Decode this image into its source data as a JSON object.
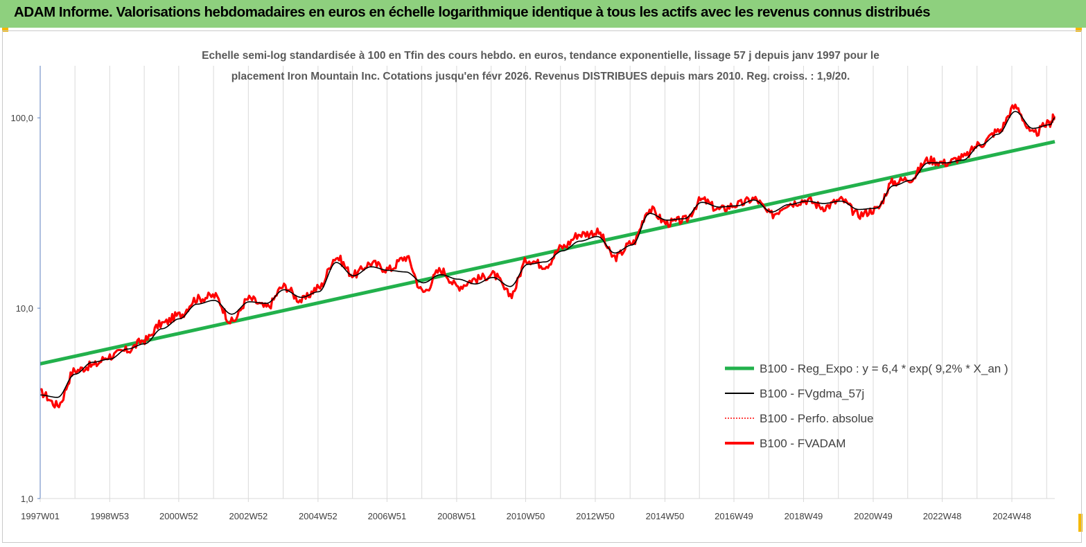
{
  "banner": {
    "title": "ADAM Informe. Valorisations hebdomadaires en euros en échelle logarithmique identique à tous les actifs avec les revenus connus distribués"
  },
  "colors": {
    "banner": "#8ed07e",
    "regression": "#22b14c",
    "fvgdma": "#000000",
    "perfo": "#ff0000",
    "fvadam": "#ff0000",
    "accent": "#f5b800"
  },
  "chart_data": {
    "type": "line",
    "title_lines": [
      "Echelle semi-log standardisée à 100 en Tfin des cours hebdo. en euros, tendance exponentielle, lissage 57 j depuis janv 1997 pour le",
      "placement Iron Mountain Inc. Cotations jusqu'en févr 2026. Revenus DISTRIBUES depuis mars 2010. Reg. croiss. : 1,9/20."
    ],
    "y_scale": "log",
    "ylim": [
      1,
      180
    ],
    "xlim": [
      "1997W01",
      "2026W08"
    ],
    "y_ticks": [
      {
        "value": 1,
        "label": "1,0"
      },
      {
        "value": 10,
        "label": "10,0"
      },
      {
        "value": 100,
        "label": "100,0"
      }
    ],
    "x_ticks": [
      "1997W01",
      "1998W53",
      "2000W52",
      "2002W52",
      "2004W52",
      "2006W51",
      "2008W51",
      "2010W50",
      "2012W50",
      "2014W50",
      "2016W49",
      "2018W49",
      "2020W49",
      "2022W48",
      "2024W48"
    ],
    "grid": "vertical",
    "legend_position": "right",
    "legend": [
      {
        "key": "regression",
        "label": "B100 - Reg_Expo : y = 6,4 *  exp( 9,2% *  X_an )"
      },
      {
        "key": "fvgdma",
        "label": "B100 - FVgdma_57j"
      },
      {
        "key": "perfo",
        "label": "B100 - Perfo. absolue"
      },
      {
        "key": "fvadam",
        "label": "B100 - FVADAM"
      }
    ],
    "series": [
      {
        "key": "regression",
        "name": "B100 - Reg_Expo : y = 6,4 *  exp( 9,2% *  X_an )",
        "x": [
          "1997W01",
          "2026W08"
        ],
        "y": [
          5.1,
          75
        ]
      },
      {
        "key": "fvgdma",
        "name": "B100 - FVgdma_57j",
        "x": [
          "1997W01",
          "1997W27",
          "1998W01",
          "1998W27",
          "1999W01",
          "1999W27",
          "2000W01",
          "2000W27",
          "2001W01",
          "2001W27",
          "2002W01",
          "2002W27",
          "2003W01",
          "2003W27",
          "2004W01",
          "2004W27",
          "2005W01",
          "2005W27",
          "2006W01",
          "2006W27",
          "2007W01",
          "2007W27",
          "2008W01",
          "2008W27",
          "2009W01",
          "2009W27",
          "2010W01",
          "2010W27",
          "2011W01",
          "2011W27",
          "2012W01",
          "2012W27",
          "2013W01",
          "2013W27",
          "2014W01",
          "2014W27",
          "2015W01",
          "2015W27",
          "2016W01",
          "2016W27",
          "2017W01",
          "2017W27",
          "2018W01",
          "2018W27",
          "2019W01",
          "2019W27",
          "2020W01",
          "2020W27",
          "2021W01",
          "2021W27",
          "2022W01",
          "2022W27",
          "2023W01",
          "2023W27",
          "2024W01",
          "2024W27",
          "2025W01",
          "2025W27",
          "2026W01",
          "2026W08"
        ],
        "y": [
          3.5,
          3.4,
          4.5,
          5.2,
          5.4,
          6.1,
          6.5,
          7.8,
          8.8,
          10.5,
          11.0,
          9.3,
          10.8,
          10.6,
          12.5,
          11.4,
          12.2,
          17.4,
          14.8,
          16.5,
          15.8,
          15.5,
          13.6,
          15.0,
          14.2,
          13.4,
          14.5,
          13.0,
          17.0,
          17.5,
          20.0,
          22.5,
          23.8,
          19.5,
          21.5,
          31.5,
          29.0,
          29.5,
          36.0,
          34.0,
          34.5,
          37.0,
          32.0,
          35.0,
          36.5,
          35.5,
          36.5,
          33.0,
          33.5,
          44.0,
          47.0,
          58.0,
          58.0,
          60.0,
          72.0,
          82.0,
          108.0,
          88.0,
          92.0,
          100.0
        ]
      },
      {
        "key": "fvadam",
        "name": "B100 - FVADAM",
        "x": [
          "1997W01",
          "1997W27",
          "1998W01",
          "1998W27",
          "1999W01",
          "1999W27",
          "2000W01",
          "2000W27",
          "2001W01",
          "2001W27",
          "2002W01",
          "2002W27",
          "2003W01",
          "2003W27",
          "2004W01",
          "2004W27",
          "2005W01",
          "2005W27",
          "2006W01",
          "2006W27",
          "2007W01",
          "2007W27",
          "2008W01",
          "2008W27",
          "2009W01",
          "2009W27",
          "2010W01",
          "2010W27",
          "2011W01",
          "2011W27",
          "2012W01",
          "2012W27",
          "2013W01",
          "2013W27",
          "2014W01",
          "2014W27",
          "2015W01",
          "2015W27",
          "2016W01",
          "2016W27",
          "2017W01",
          "2017W27",
          "2018W01",
          "2018W27",
          "2019W01",
          "2019W27",
          "2020W01",
          "2020W27",
          "2021W01",
          "2021W27",
          "2022W01",
          "2022W27",
          "2023W01",
          "2023W27",
          "2024W01",
          "2024W27",
          "2025W01",
          "2025W27",
          "2026W01",
          "2026W08"
        ],
        "y": [
          3.6,
          3.1,
          4.7,
          5.0,
          5.6,
          6.0,
          6.8,
          8.3,
          9.2,
          11.2,
          11.6,
          8.5,
          11.2,
          10.1,
          13.0,
          11.0,
          12.8,
          18.5,
          15.0,
          17.2,
          16.0,
          18.5,
          12.2,
          15.8,
          13.0,
          14.2,
          15.0,
          11.8,
          18.0,
          16.8,
          21.0,
          24.5,
          25.0,
          18.5,
          22.0,
          33.0,
          28.0,
          29.0,
          37.0,
          33.0,
          35.0,
          37.5,
          31.0,
          35.5,
          37.0,
          34.0,
          37.0,
          31.0,
          33.0,
          46.0,
          48.0,
          60.0,
          58.0,
          62.0,
          73.0,
          85.0,
          114.0,
          82.0,
          94.0,
          102.0
        ]
      }
    ]
  }
}
